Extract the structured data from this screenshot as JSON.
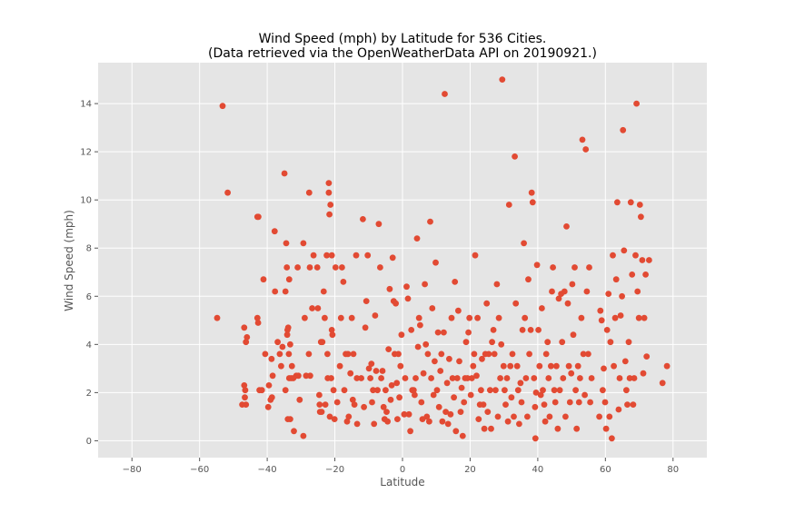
{
  "chart_data": {
    "type": "scatter",
    "title_line1": "Wind Speed (mph) by Latitude for 536 Cities.",
    "title_line2": "(Data retrieved via the OpenWeatherData API on 20190921.)",
    "xlabel": "Latitude",
    "ylabel": "Wind Speed (mph)",
    "xlim": [
      -90,
      90
    ],
    "ylim": [
      -0.7,
      15.7
    ],
    "xticks": [
      -80,
      -60,
      -40,
      -20,
      0,
      20,
      40,
      60,
      80
    ],
    "yticks": [
      0,
      2,
      4,
      6,
      8,
      10,
      12,
      14
    ],
    "xtick_labels": [
      "−80",
      "−60",
      "−40",
      "−20",
      "0",
      "20",
      "40",
      "60",
      "80"
    ],
    "ytick_labels": [
      "0",
      "2",
      "4",
      "6",
      "8",
      "10",
      "12",
      "14"
    ],
    "grid": true,
    "colors": {
      "background": "#e5e5e5",
      "grid": "#ffffff",
      "marker": "#e24a33"
    },
    "points": [
      [
        -53.2,
        13.9
      ],
      [
        -51.7,
        10.3
      ],
      [
        -54.8,
        5.1
      ],
      [
        -46.8,
        4.7
      ],
      [
        -46.3,
        4.1
      ],
      [
        -46.0,
        4.3
      ],
      [
        -46.8,
        2.3
      ],
      [
        -46.5,
        2.1
      ],
      [
        -46.6,
        1.8
      ],
      [
        -47.4,
        1.5
      ],
      [
        -46.3,
        1.5
      ],
      [
        -42.9,
        9.3
      ],
      [
        -42.6,
        9.3
      ],
      [
        -42.9,
        5.1
      ],
      [
        -42.7,
        4.9
      ],
      [
        -42.3,
        2.1
      ],
      [
        -41.6,
        2.1
      ],
      [
        -41.1,
        6.7
      ],
      [
        -40.6,
        3.6
      ],
      [
        -39.7,
        1.4
      ],
      [
        -39.5,
        2.3
      ],
      [
        -39.0,
        1.7
      ],
      [
        -38.6,
        1.8
      ],
      [
        -38.7,
        3.4
      ],
      [
        -38.4,
        2.7
      ],
      [
        -37.8,
        8.7
      ],
      [
        -37.7,
        6.2
      ],
      [
        -36.9,
        4.1
      ],
      [
        -36.3,
        3.6
      ],
      [
        -35.9,
        3.1
      ],
      [
        -35.5,
        3.9
      ],
      [
        -34.9,
        11.1
      ],
      [
        -34.6,
        6.2
      ],
      [
        -34.6,
        2.1
      ],
      [
        -34.4,
        8.2
      ],
      [
        -34.2,
        7.2
      ],
      [
        -34.1,
        4.4
      ],
      [
        -34.0,
        4.6
      ],
      [
        -33.8,
        4.7
      ],
      [
        -33.6,
        3.6
      ],
      [
        -33.5,
        2.6
      ],
      [
        -33.9,
        0.9
      ],
      [
        -33.2,
        0.9
      ],
      [
        -33.5,
        6.7
      ],
      [
        -33.2,
        4.0
      ],
      [
        -32.9,
        2.6
      ],
      [
        -32.7,
        3.1
      ],
      [
        -32.3,
        2.6
      ],
      [
        -32.1,
        0.4
      ],
      [
        -31.4,
        2.7
      ],
      [
        -31.0,
        7.2
      ],
      [
        -30.8,
        2.7
      ],
      [
        -30.4,
        1.7
      ],
      [
        -29.3,
        8.2
      ],
      [
        -29.3,
        0.2
      ],
      [
        -28.9,
        5.1
      ],
      [
        -28.5,
        2.7
      ],
      [
        -27.7,
        3.6
      ],
      [
        -27.6,
        10.3
      ],
      [
        -27.4,
        7.2
      ],
      [
        -27.3,
        2.7
      ],
      [
        -26.7,
        5.5
      ],
      [
        -26.3,
        7.7
      ],
      [
        -25.2,
        7.2
      ],
      [
        -25.0,
        5.5
      ],
      [
        -24.6,
        1.9
      ],
      [
        -24.5,
        1.5
      ],
      [
        -24.4,
        1.2
      ],
      [
        -24.1,
        4.1
      ],
      [
        -23.9,
        1.2
      ],
      [
        -23.7,
        4.1
      ],
      [
        -23.3,
        6.2
      ],
      [
        -23.0,
        5.1
      ],
      [
        -22.8,
        1.5
      ],
      [
        -22.4,
        7.7
      ],
      [
        -22.2,
        3.6
      ],
      [
        -22.1,
        2.6
      ],
      [
        -21.8,
        10.3
      ],
      [
        -21.8,
        10.7
      ],
      [
        -21.6,
        9.4
      ],
      [
        -21.3,
        9.8
      ],
      [
        -21.5,
        1.0
      ],
      [
        -21.1,
        2.6
      ],
      [
        -20.9,
        4.6
      ],
      [
        -20.9,
        7.7
      ],
      [
        -20.7,
        4.4
      ],
      [
        -20.4,
        2.1
      ],
      [
        -20.1,
        0.9
      ],
      [
        -19.8,
        7.2
      ],
      [
        -19.3,
        1.6
      ],
      [
        -18.5,
        3.1
      ],
      [
        -18.2,
        5.1
      ],
      [
        -17.9,
        7.2
      ],
      [
        -17.5,
        6.6
      ],
      [
        -17.2,
        2.1
      ],
      [
        -16.8,
        3.6
      ],
      [
        -16.4,
        0.8
      ],
      [
        -16.1,
        3.6
      ],
      [
        -15.9,
        1.0
      ],
      [
        -15.4,
        2.8
      ],
      [
        -15.0,
        5.1
      ],
      [
        -14.7,
        1.7
      ],
      [
        -14.5,
        3.6
      ],
      [
        -14.2,
        1.5
      ],
      [
        -13.7,
        7.7
      ],
      [
        -13.5,
        2.6
      ],
      [
        -13.4,
        0.7
      ],
      [
        -12.2,
        2.6
      ],
      [
        -11.7,
        9.2
      ],
      [
        -11.4,
        1.4
      ],
      [
        -11.0,
        4.7
      ],
      [
        -10.7,
        5.8
      ],
      [
        -10.3,
        7.7
      ],
      [
        -9.9,
        3.0
      ],
      [
        -9.5,
        2.6
      ],
      [
        -9.2,
        3.2
      ],
      [
        -9.0,
        1.6
      ],
      [
        -8.7,
        2.1
      ],
      [
        -8.4,
        0.7
      ],
      [
        -8.1,
        5.2
      ],
      [
        -7.8,
        2.9
      ],
      [
        -7.4,
        2.1
      ],
      [
        -7.0,
        9.0
      ],
      [
        -6.6,
        7.2
      ],
      [
        -6.3,
        2.6
      ],
      [
        -5.9,
        2.9
      ],
      [
        -5.6,
        1.4
      ],
      [
        -5.3,
        0.9
      ],
      [
        -5.0,
        2.1
      ],
      [
        -4.7,
        1.2
      ],
      [
        -4.4,
        0.8
      ],
      [
        -4.1,
        3.8
      ],
      [
        -3.8,
        6.3
      ],
      [
        -3.5,
        1.7
      ],
      [
        -3.2,
        2.3
      ],
      [
        -2.9,
        7.6
      ],
      [
        -2.6,
        5.8
      ],
      [
        -2.3,
        3.6
      ],
      [
        -2.0,
        5.7
      ],
      [
        -1.7,
        2.4
      ],
      [
        -1.5,
        0.9
      ],
      [
        -1.2,
        3.6
      ],
      [
        -0.9,
        1.8
      ],
      [
        -0.6,
        3.1
      ],
      [
        -0.3,
        4.4
      ],
      [
        0.5,
        1.1
      ],
      [
        0.8,
        2.6
      ],
      [
        1.2,
        6.4
      ],
      [
        1.6,
        5.9
      ],
      [
        1.9,
        1.1
      ],
      [
        2.3,
        0.4
      ],
      [
        2.6,
        4.6
      ],
      [
        2.9,
        2.1
      ],
      [
        3.3,
        2.1
      ],
      [
        3.6,
        1.9
      ],
      [
        3.9,
        2.6
      ],
      [
        4.3,
        8.4
      ],
      [
        4.6,
        3.9
      ],
      [
        4.9,
        5.1
      ],
      [
        5.2,
        4.8
      ],
      [
        5.6,
        1.6
      ],
      [
        5.9,
        0.9
      ],
      [
        6.2,
        2.8
      ],
      [
        6.6,
        6.5
      ],
      [
        6.9,
        4.0
      ],
      [
        7.2,
        1.0
      ],
      [
        7.5,
        3.6
      ],
      [
        7.9,
        0.8
      ],
      [
        8.2,
        9.1
      ],
      [
        8.5,
        2.6
      ],
      [
        8.8,
        5.5
      ],
      [
        9.2,
        1.9
      ],
      [
        9.5,
        3.3
      ],
      [
        9.8,
        7.4
      ],
      [
        10.2,
        2.1
      ],
      [
        10.5,
        4.5
      ],
      [
        10.8,
        1.4
      ],
      [
        11.2,
        2.9
      ],
      [
        11.5,
        3.6
      ],
      [
        11.8,
        0.8
      ],
      [
        12.2,
        4.5
      ],
      [
        12.5,
        14.4
      ],
      [
        12.8,
        1.2
      ],
      [
        13.2,
        2.4
      ],
      [
        13.5,
        0.7
      ],
      [
        13.8,
        3.4
      ],
      [
        14.2,
        1.1
      ],
      [
        14.5,
        5.1
      ],
      [
        14.8,
        2.6
      ],
      [
        15.2,
        1.8
      ],
      [
        15.5,
        6.6
      ],
      [
        15.8,
        0.4
      ],
      [
        16.2,
        2.6
      ],
      [
        16.5,
        5.4
      ],
      [
        16.8,
        3.3
      ],
      [
        17.2,
        1.2
      ],
      [
        17.5,
        2.2
      ],
      [
        17.8,
        0.2
      ],
      [
        18.2,
        1.6
      ],
      [
        18.5,
        2.6
      ],
      [
        18.8,
        4.1
      ],
      [
        19.2,
        2.6
      ],
      [
        19.5,
        4.5
      ],
      [
        19.8,
        5.1
      ],
      [
        20.2,
        1.9
      ],
      [
        20.5,
        2.6
      ],
      [
        20.9,
        3.1
      ],
      [
        21.2,
        3.6
      ],
      [
        21.5,
        7.7
      ],
      [
        21.9,
        2.7
      ],
      [
        22.2,
        5.1
      ],
      [
        22.5,
        0.9
      ],
      [
        22.9,
        1.5
      ],
      [
        23.2,
        2.1
      ],
      [
        23.5,
        3.4
      ],
      [
        23.9,
        1.5
      ],
      [
        24.2,
        0.5
      ],
      [
        24.5,
        3.6
      ],
      [
        24.9,
        5.7
      ],
      [
        25.2,
        1.2
      ],
      [
        25.5,
        3.6
      ],
      [
        25.9,
        2.1
      ],
      [
        26.2,
        0.5
      ],
      [
        26.5,
        4.1
      ],
      [
        26.9,
        4.6
      ],
      [
        27.2,
        3.6
      ],
      [
        27.5,
        2.1
      ],
      [
        27.9,
        6.5
      ],
      [
        28.2,
        1.0
      ],
      [
        28.5,
        5.1
      ],
      [
        28.9,
        2.6
      ],
      [
        29.2,
        4.0
      ],
      [
        29.5,
        15.0
      ],
      [
        29.9,
        3.1
      ],
      [
        30.2,
        2.1
      ],
      [
        30.5,
        1.5
      ],
      [
        30.9,
        2.6
      ],
      [
        31.2,
        0.8
      ],
      [
        31.5,
        9.8
      ],
      [
        31.9,
        3.1
      ],
      [
        32.2,
        1.8
      ],
      [
        32.5,
        3.6
      ],
      [
        32.9,
        1.0
      ],
      [
        33.2,
        11.8
      ],
      [
        33.5,
        5.7
      ],
      [
        33.9,
        3.1
      ],
      [
        34.2,
        2.1
      ],
      [
        34.5,
        0.7
      ],
      [
        34.9,
        2.4
      ],
      [
        35.2,
        1.6
      ],
      [
        35.5,
        4.6
      ],
      [
        35.9,
        8.2
      ],
      [
        36.2,
        5.1
      ],
      [
        36.5,
        2.6
      ],
      [
        36.9,
        1.0
      ],
      [
        37.2,
        6.7
      ],
      [
        37.5,
        3.6
      ],
      [
        37.9,
        4.6
      ],
      [
        38.2,
        10.3
      ],
      [
        38.5,
        9.9
      ],
      [
        38.9,
        2.6
      ],
      [
        39.2,
        1.4
      ],
      [
        39.5,
        2.0
      ],
      [
        39.3,
        0.1
      ],
      [
        39.8,
        7.3
      ],
      [
        40.2,
        4.6
      ],
      [
        40.5,
        3.1
      ],
      [
        40.9,
        1.9
      ],
      [
        41.2,
        5.5
      ],
      [
        41.5,
        2.1
      ],
      [
        41.9,
        1.5
      ],
      [
        42.2,
        0.8
      ],
      [
        42.5,
        3.6
      ],
      [
        42.9,
        4.1
      ],
      [
        43.2,
        2.6
      ],
      [
        43.5,
        1.0
      ],
      [
        43.9,
        3.1
      ],
      [
        44.2,
        6.2
      ],
      [
        44.5,
        7.2
      ],
      [
        44.9,
        2.1
      ],
      [
        45.2,
        1.6
      ],
      [
        45.5,
        3.1
      ],
      [
        45.9,
        0.5
      ],
      [
        46.2,
        5.9
      ],
      [
        46.5,
        2.1
      ],
      [
        46.9,
        6.1
      ],
      [
        47.2,
        4.1
      ],
      [
        47.5,
        2.6
      ],
      [
        47.9,
        6.2
      ],
      [
        48.2,
        1.0
      ],
      [
        48.5,
        8.9
      ],
      [
        48.9,
        5.7
      ],
      [
        49.2,
        3.1
      ],
      [
        49.5,
        1.6
      ],
      [
        49.9,
        2.8
      ],
      [
        50.2,
        6.5
      ],
      [
        50.5,
        4.4
      ],
      [
        50.9,
        7.2
      ],
      [
        51.2,
        2.1
      ],
      [
        51.5,
        0.5
      ],
      [
        51.9,
        3.1
      ],
      [
        52.2,
        1.6
      ],
      [
        52.5,
        2.6
      ],
      [
        52.9,
        5.1
      ],
      [
        53.2,
        12.5
      ],
      [
        53.5,
        3.6
      ],
      [
        53.9,
        1.9
      ],
      [
        54.2,
        12.1
      ],
      [
        54.5,
        6.2
      ],
      [
        54.9,
        3.6
      ],
      [
        55.2,
        7.2
      ],
      [
        55.5,
        1.6
      ],
      [
        55.9,
        2.6
      ],
      [
        58.2,
        1.0
      ],
      [
        58.5,
        5.4
      ],
      [
        58.9,
        5.0
      ],
      [
        59.2,
        2.1
      ],
      [
        59.5,
        3.0
      ],
      [
        59.9,
        1.6
      ],
      [
        60.2,
        0.5
      ],
      [
        60.5,
        4.6
      ],
      [
        60.9,
        6.1
      ],
      [
        61.2,
        1.0
      ],
      [
        61.5,
        4.1
      ],
      [
        61.9,
        0.1
      ],
      [
        62.2,
        7.7
      ],
      [
        62.5,
        3.1
      ],
      [
        62.9,
        5.1
      ],
      [
        63.2,
        6.7
      ],
      [
        63.5,
        9.9
      ],
      [
        63.9,
        1.3
      ],
      [
        64.2,
        2.6
      ],
      [
        64.5,
        5.2
      ],
      [
        64.9,
        6.0
      ],
      [
        65.2,
        12.9
      ],
      [
        65.5,
        7.9
      ],
      [
        65.9,
        3.3
      ],
      [
        66.2,
        2.1
      ],
      [
        66.5,
        1.5
      ],
      [
        66.9,
        4.1
      ],
      [
        67.2,
        2.6
      ],
      [
        67.5,
        9.9
      ],
      [
        67.9,
        6.9
      ],
      [
        68.2,
        1.5
      ],
      [
        68.5,
        2.6
      ],
      [
        68.9,
        7.7
      ],
      [
        69.2,
        14.0
      ],
      [
        69.5,
        6.2
      ],
      [
        69.9,
        5.1
      ],
      [
        70.2,
        9.8
      ],
      [
        70.5,
        9.3
      ],
      [
        70.9,
        7.5
      ],
      [
        71.2,
        2.8
      ],
      [
        71.5,
        5.1
      ],
      [
        71.9,
        6.9
      ],
      [
        72.2,
        3.5
      ],
      [
        72.9,
        7.5
      ],
      [
        76.9,
        2.4
      ],
      [
        78.2,
        3.1
      ]
    ]
  }
}
